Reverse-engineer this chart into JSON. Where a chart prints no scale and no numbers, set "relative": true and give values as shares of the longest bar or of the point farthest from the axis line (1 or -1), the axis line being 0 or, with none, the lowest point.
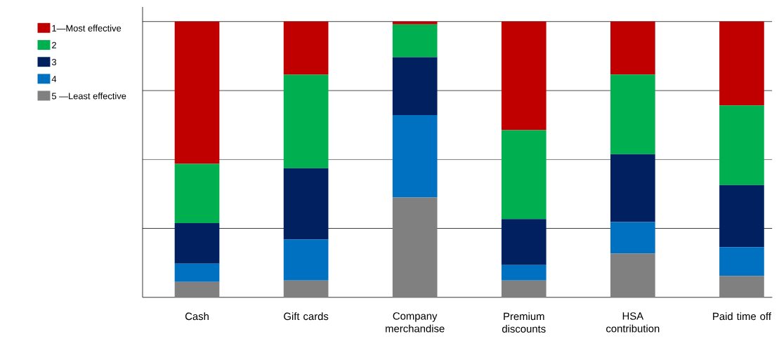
{
  "chart_data": {
    "type": "bar",
    "stacked": true,
    "relative": true,
    "grid": "y",
    "legend": "left",
    "categories": [
      "Cash",
      "Gift cards",
      "Company merchandise",
      "Premium discounts",
      "HSA contribution",
      "Paid time off"
    ],
    "series": [
      {
        "name": "5 —Least effective",
        "color": "#808080",
        "values": [
          0.056,
          0.061,
          0.362,
          0.061,
          0.159,
          0.078
        ]
      },
      {
        "name": "4",
        "color": "#0070c0",
        "values": [
          0.066,
          0.149,
          0.299,
          0.056,
          0.114,
          0.104
        ]
      },
      {
        "name": "3",
        "color": "#002060",
        "values": [
          0.147,
          0.258,
          0.21,
          0.167,
          0.246,
          0.225
        ]
      },
      {
        "name": "2",
        "color": "#00b050",
        "values": [
          0.215,
          0.339,
          0.119,
          0.322,
          0.289,
          0.289
        ]
      },
      {
        "name": "1—Most effective",
        "color": "#c00000",
        "values": [
          0.516,
          0.193,
          0.01,
          0.394,
          0.192,
          0.304
        ]
      }
    ]
  }
}
